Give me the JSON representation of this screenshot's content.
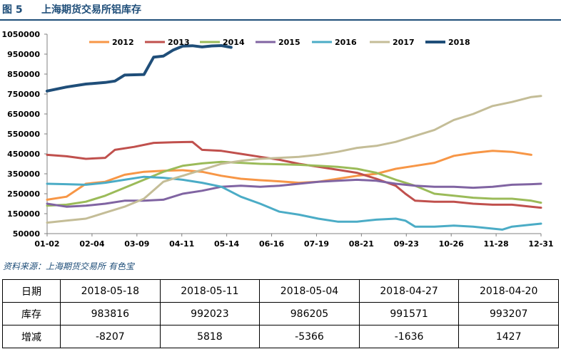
{
  "header": {
    "figure_no": "图 5",
    "title": "上海期货交易所铝库存"
  },
  "chart_data": {
    "type": "line",
    "title": "上海期货交易所铝库存",
    "xlabel": "",
    "ylabel": "",
    "ylim": [
      50000,
      1050000
    ],
    "yticks": [
      50000,
      150000,
      250000,
      350000,
      450000,
      550000,
      650000,
      750000,
      850000,
      950000,
      1050000
    ],
    "xticks": [
      "01-02",
      "02-04",
      "03-09",
      "04-11",
      "05-14",
      "06-16",
      "07-19",
      "08-21",
      "09-23",
      "10-26",
      "11-28",
      "12-31"
    ],
    "x_unit": "week_index",
    "x_max": 51,
    "series": [
      {
        "name": "2012",
        "color": "#f79646",
        "points": [
          [
            0,
            220000
          ],
          [
            2,
            235000
          ],
          [
            4,
            300000
          ],
          [
            6,
            310000
          ],
          [
            8,
            345000
          ],
          [
            10,
            360000
          ],
          [
            12,
            365000
          ],
          [
            14,
            368000
          ],
          [
            16,
            360000
          ],
          [
            18,
            340000
          ],
          [
            20,
            325000
          ],
          [
            22,
            318000
          ],
          [
            24,
            312000
          ],
          [
            26,
            305000
          ],
          [
            28,
            310000
          ],
          [
            30,
            325000
          ],
          [
            32,
            340000
          ],
          [
            34,
            350000
          ],
          [
            36,
            375000
          ],
          [
            38,
            390000
          ],
          [
            40,
            405000
          ],
          [
            42,
            440000
          ],
          [
            44,
            455000
          ],
          [
            46,
            465000
          ],
          [
            48,
            460000
          ],
          [
            50,
            445000
          ]
        ]
      },
      {
        "name": "2013",
        "color": "#c0504d",
        "points": [
          [
            0,
            445000
          ],
          [
            2,
            438000
          ],
          [
            4,
            425000
          ],
          [
            6,
            430000
          ],
          [
            7,
            470000
          ],
          [
            9,
            485000
          ],
          [
            11,
            505000
          ],
          [
            13,
            508000
          ],
          [
            15,
            510000
          ],
          [
            16,
            470000
          ],
          [
            18,
            465000
          ],
          [
            20,
            450000
          ],
          [
            22,
            435000
          ],
          [
            24,
            420000
          ],
          [
            26,
            400000
          ],
          [
            28,
            385000
          ],
          [
            30,
            370000
          ],
          [
            32,
            355000
          ],
          [
            34,
            325000
          ],
          [
            36,
            290000
          ],
          [
            37,
            250000
          ],
          [
            38,
            215000
          ],
          [
            40,
            210000
          ],
          [
            42,
            210000
          ],
          [
            44,
            200000
          ],
          [
            46,
            195000
          ],
          [
            48,
            195000
          ],
          [
            50,
            185000
          ],
          [
            51,
            180000
          ]
        ]
      },
      {
        "name": "2014",
        "color": "#9bbb59",
        "points": [
          [
            0,
            190000
          ],
          [
            2,
            195000
          ],
          [
            4,
            210000
          ],
          [
            6,
            240000
          ],
          [
            8,
            280000
          ],
          [
            10,
            320000
          ],
          [
            12,
            360000
          ],
          [
            14,
            390000
          ],
          [
            16,
            402000
          ],
          [
            18,
            410000
          ],
          [
            20,
            405000
          ],
          [
            22,
            400000
          ],
          [
            24,
            398000
          ],
          [
            26,
            395000
          ],
          [
            28,
            390000
          ],
          [
            30,
            385000
          ],
          [
            32,
            375000
          ],
          [
            34,
            355000
          ],
          [
            36,
            320000
          ],
          [
            38,
            290000
          ],
          [
            40,
            250000
          ],
          [
            42,
            240000
          ],
          [
            44,
            230000
          ],
          [
            46,
            225000
          ],
          [
            48,
            225000
          ],
          [
            50,
            215000
          ],
          [
            52,
            205000
          ]
        ]
      },
      {
        "name": "2015",
        "color": "#8064a2",
        "points": [
          [
            0,
            200000
          ],
          [
            2,
            185000
          ],
          [
            4,
            190000
          ],
          [
            6,
            200000
          ],
          [
            8,
            215000
          ],
          [
            10,
            215000
          ],
          [
            12,
            220000
          ],
          [
            14,
            250000
          ],
          [
            16,
            265000
          ],
          [
            18,
            285000
          ],
          [
            20,
            290000
          ],
          [
            22,
            285000
          ],
          [
            24,
            290000
          ],
          [
            26,
            300000
          ],
          [
            28,
            310000
          ],
          [
            30,
            315000
          ],
          [
            32,
            320000
          ],
          [
            34,
            315000
          ],
          [
            36,
            300000
          ],
          [
            38,
            290000
          ],
          [
            40,
            285000
          ],
          [
            42,
            285000
          ],
          [
            44,
            280000
          ],
          [
            46,
            285000
          ],
          [
            48,
            295000
          ],
          [
            50,
            298000
          ],
          [
            52,
            300000
          ]
        ]
      },
      {
        "name": "2016",
        "color": "#4bacc6",
        "points": [
          [
            0,
            300000
          ],
          [
            2,
            298000
          ],
          [
            4,
            295000
          ],
          [
            6,
            305000
          ],
          [
            8,
            320000
          ],
          [
            10,
            335000
          ],
          [
            12,
            330000
          ],
          [
            14,
            320000
          ],
          [
            16,
            305000
          ],
          [
            18,
            285000
          ],
          [
            19,
            260000
          ],
          [
            20,
            235000
          ],
          [
            22,
            200000
          ],
          [
            24,
            160000
          ],
          [
            26,
            145000
          ],
          [
            28,
            125000
          ],
          [
            30,
            110000
          ],
          [
            32,
            110000
          ],
          [
            34,
            120000
          ],
          [
            36,
            125000
          ],
          [
            37,
            115000
          ],
          [
            38,
            85000
          ],
          [
            40,
            85000
          ],
          [
            42,
            90000
          ],
          [
            44,
            85000
          ],
          [
            46,
            75000
          ],
          [
            47,
            70000
          ],
          [
            48,
            85000
          ],
          [
            50,
            95000
          ],
          [
            51,
            100000
          ]
        ]
      },
      {
        "name": "2017",
        "color": "#c4bd97",
        "points": [
          [
            0,
            105000
          ],
          [
            2,
            115000
          ],
          [
            4,
            125000
          ],
          [
            6,
            155000
          ],
          [
            8,
            185000
          ],
          [
            10,
            225000
          ],
          [
            12,
            310000
          ],
          [
            14,
            340000
          ],
          [
            16,
            370000
          ],
          [
            18,
            400000
          ],
          [
            20,
            415000
          ],
          [
            22,
            425000
          ],
          [
            24,
            430000
          ],
          [
            26,
            435000
          ],
          [
            28,
            445000
          ],
          [
            30,
            460000
          ],
          [
            32,
            480000
          ],
          [
            34,
            490000
          ],
          [
            36,
            510000
          ],
          [
            38,
            540000
          ],
          [
            40,
            570000
          ],
          [
            42,
            620000
          ],
          [
            44,
            650000
          ],
          [
            46,
            690000
          ],
          [
            48,
            710000
          ],
          [
            50,
            735000
          ],
          [
            51,
            740000
          ]
        ]
      },
      {
        "name": "2018",
        "color": "#1f4e79",
        "points": [
          [
            0,
            765000
          ],
          [
            2,
            785000
          ],
          [
            4,
            800000
          ],
          [
            6,
            808000
          ],
          [
            7,
            815000
          ],
          [
            8,
            845000
          ],
          [
            10,
            848000
          ],
          [
            11,
            935000
          ],
          [
            12,
            940000
          ],
          [
            13,
            970000
          ],
          [
            14,
            990000
          ],
          [
            15,
            992000
          ],
          [
            16,
            986000
          ],
          [
            17,
            991000
          ],
          [
            18,
            993000
          ],
          [
            19,
            984000
          ]
        ]
      }
    ]
  },
  "source": "资料来源：上海期货交易所   有色宝",
  "table": {
    "row_labels": [
      "日期",
      "库存",
      "增减"
    ],
    "columns": [
      {
        "date": "2018-05-18",
        "stock": "983816",
        "change": "-8207"
      },
      {
        "date": "2018-05-11",
        "stock": "992023",
        "change": "5818"
      },
      {
        "date": "2018-05-04",
        "stock": "986205",
        "change": "-5366"
      },
      {
        "date": "2018-04-27",
        "stock": "991571",
        "change": "-1636"
      },
      {
        "date": "2018-04-20",
        "stock": "993207",
        "change": "1427"
      }
    ]
  }
}
